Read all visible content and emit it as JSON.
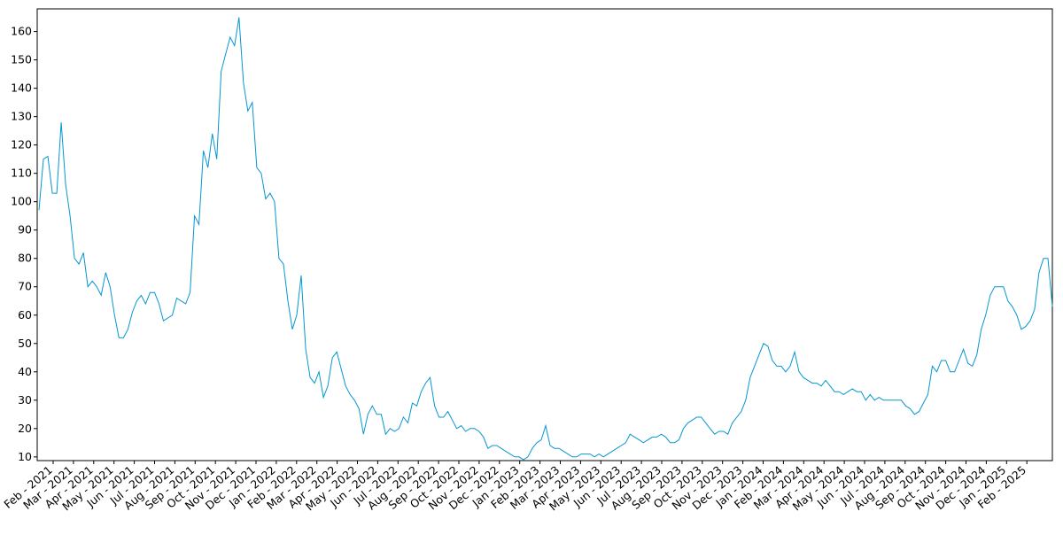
{
  "chart_data": {
    "type": "line",
    "x_tick_labels": [
      "Feb - 2021",
      "Mar - 2021",
      "Apr - 2021",
      "May - 2021",
      "Jun - 2021",
      "Jul - 2021",
      "Aug - 2021",
      "Sep - 2021",
      "Oct - 2021",
      "Nov - 2021",
      "Dec - 2021",
      "Jan - 2022",
      "Feb - 2022",
      "Mar - 2022",
      "Apr - 2022",
      "May - 2022",
      "Jun - 2022",
      "Jul - 2022",
      "Aug - 2022",
      "Sep - 2022",
      "Oct - 2022",
      "Nov - 2022",
      "Dec - 2022",
      "Jan - 2023",
      "Feb - 2023",
      "Mar - 2023",
      "Apr - 2023",
      "May - 2023",
      "Jun - 2023",
      "Jul - 2023",
      "Aug - 2023",
      "Sep - 2023",
      "Oct - 2023",
      "Nov - 2023",
      "Dec - 2023",
      "Jan - 2024",
      "Feb - 2024",
      "Mar - 2024",
      "Apr - 2024",
      "May - 2024",
      "Jun - 2024",
      "Jul - 2024",
      "Aug - 2024",
      "Sep - 2024",
      "Oct - 2024",
      "Nov - 2024",
      "Dec - 2024",
      "Jan - 2025",
      "Feb - 2025"
    ],
    "color": "#0596d2",
    "values": [
      97,
      115,
      116,
      103,
      103,
      128,
      106,
      95,
      80,
      78,
      82,
      70,
      72,
      70,
      67,
      75,
      70,
      60,
      52,
      52,
      55,
      61,
      65,
      67,
      64,
      68,
      68,
      64,
      58,
      59,
      60,
      66,
      65,
      64,
      68,
      95,
      92,
      118,
      112,
      124,
      115,
      146,
      152,
      158,
      155,
      165,
      142,
      132,
      135,
      112,
      110,
      101,
      103,
      100,
      80,
      78,
      65,
      55,
      60,
      74,
      48,
      38,
      36,
      40,
      31,
      35,
      45,
      47,
      41,
      35,
      32,
      30,
      27,
      18,
      25,
      28,
      25,
      25,
      18,
      20,
      19,
      20,
      24,
      22,
      29,
      28,
      33,
      36,
      38,
      28,
      24,
      24,
      26,
      23,
      20,
      21,
      19,
      20,
      20,
      19,
      17,
      13,
      14,
      14,
      13,
      12,
      11,
      10,
      10,
      9,
      10,
      13,
      15,
      16,
      21,
      14,
      13,
      13,
      12,
      11,
      10,
      10,
      11,
      11,
      11,
      10,
      11,
      10,
      11,
      12,
      13,
      14,
      15,
      18,
      17,
      16,
      15,
      16,
      17,
      17,
      18,
      17,
      15,
      15,
      16,
      20,
      22,
      23,
      24,
      24,
      22,
      20,
      18,
      19,
      19,
      18,
      22,
      24,
      26,
      30,
      38,
      42,
      46,
      50,
      49,
      44,
      42,
      42,
      40,
      42,
      47,
      40,
      38,
      37,
      36,
      36,
      35,
      37,
      35,
      33,
      33,
      32,
      33,
      34,
      33,
      33,
      30,
      32,
      30,
      31,
      30,
      30,
      30,
      30,
      30,
      28,
      27,
      25,
      26,
      29,
      32,
      42,
      40,
      44,
      44,
      40,
      40,
      44,
      48,
      43,
      42,
      46,
      55,
      60,
      67,
      70,
      70,
      70,
      65,
      63,
      60,
      55,
      56,
      58,
      62,
      75,
      80,
      80,
      63
    ],
    "ylim": [
      8.7,
      168
    ],
    "yticks": [
      10,
      20,
      30,
      40,
      50,
      60,
      70,
      80,
      90,
      100,
      110,
      120,
      130,
      140,
      150,
      160
    ]
  }
}
